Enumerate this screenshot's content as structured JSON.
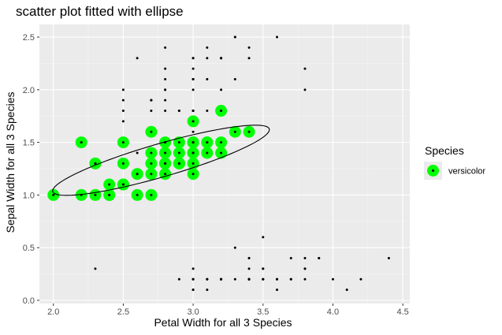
{
  "chart_data": {
    "type": "scatter",
    "title": "scatter plot fitted with ellipse",
    "xlabel": "Petal Width for all 3 Species",
    "ylabel": "Sepal Width for all 3 Species",
    "xlim": [
      1.9,
      4.55
    ],
    "ylim": [
      -0.03,
      2.62
    ],
    "x_ticks": [
      "2.0",
      "2.5",
      "3.0",
      "3.5",
      "4.0",
      "4.5"
    ],
    "y_ticks": [
      "0.0",
      "0.5",
      "1.0",
      "1.5",
      "2.0",
      "2.5"
    ],
    "grid": true,
    "legend": {
      "title": "Species",
      "position": "right",
      "entries": [
        "versicolor"
      ]
    },
    "colors": {
      "panel": "#ebebeb",
      "grid_major": "#ffffff",
      "grid_minor": "#f5f5f5",
      "highlight": "#00ff00",
      "point": "#000000"
    },
    "all_points": [
      [
        3.5,
        0.2
      ],
      [
        3.0,
        0.2
      ],
      [
        3.2,
        0.2
      ],
      [
        3.1,
        0.2
      ],
      [
        3.6,
        0.2
      ],
      [
        3.9,
        0.4
      ],
      [
        3.4,
        0.3
      ],
      [
        3.4,
        0.2
      ],
      [
        2.9,
        0.2
      ],
      [
        3.1,
        0.1
      ],
      [
        3.7,
        0.2
      ],
      [
        3.4,
        0.2
      ],
      [
        3.0,
        0.1
      ],
      [
        3.0,
        0.1
      ],
      [
        4.0,
        0.2
      ],
      [
        4.4,
        0.4
      ],
      [
        3.9,
        0.4
      ],
      [
        3.5,
        0.3
      ],
      [
        3.8,
        0.3
      ],
      [
        3.8,
        0.3
      ],
      [
        3.4,
        0.2
      ],
      [
        3.7,
        0.4
      ],
      [
        3.6,
        0.2
      ],
      [
        3.3,
        0.5
      ],
      [
        3.4,
        0.2
      ],
      [
        3.0,
        0.2
      ],
      [
        3.4,
        0.4
      ],
      [
        3.5,
        0.2
      ],
      [
        3.4,
        0.2
      ],
      [
        3.2,
        0.2
      ],
      [
        3.1,
        0.2
      ],
      [
        3.4,
        0.4
      ],
      [
        4.1,
        0.1
      ],
      [
        4.2,
        0.2
      ],
      [
        3.1,
        0.2
      ],
      [
        3.2,
        0.2
      ],
      [
        3.5,
        0.2
      ],
      [
        3.6,
        0.1
      ],
      [
        3.0,
        0.2
      ],
      [
        3.4,
        0.2
      ],
      [
        3.5,
        0.3
      ],
      [
        2.3,
        0.3
      ],
      [
        3.2,
        0.2
      ],
      [
        3.5,
        0.6
      ],
      [
        3.8,
        0.4
      ],
      [
        3.0,
        0.3
      ],
      [
        3.8,
        0.2
      ],
      [
        3.2,
        0.2
      ],
      [
        3.7,
        0.2
      ],
      [
        3.3,
        0.2
      ],
      [
        3.2,
        1.4
      ],
      [
        3.2,
        1.5
      ],
      [
        3.1,
        1.5
      ],
      [
        2.3,
        1.3
      ],
      [
        2.8,
        1.5
      ],
      [
        2.8,
        1.3
      ],
      [
        3.3,
        1.6
      ],
      [
        2.4,
        1.0
      ],
      [
        2.9,
        1.3
      ],
      [
        2.7,
        1.4
      ],
      [
        2.0,
        1.0
      ],
      [
        3.0,
        1.5
      ],
      [
        2.2,
        1.0
      ],
      [
        2.9,
        1.4
      ],
      [
        2.9,
        1.3
      ],
      [
        3.1,
        1.4
      ],
      [
        3.0,
        1.5
      ],
      [
        2.7,
        1.0
      ],
      [
        2.2,
        1.5
      ],
      [
        2.5,
        1.1
      ],
      [
        3.2,
        1.8
      ],
      [
        2.8,
        1.3
      ],
      [
        2.5,
        1.5
      ],
      [
        2.8,
        1.2
      ],
      [
        2.9,
        1.3
      ],
      [
        3.0,
        1.4
      ],
      [
        2.8,
        1.4
      ],
      [
        3.0,
        1.7
      ],
      [
        2.9,
        1.5
      ],
      [
        2.6,
        1.0
      ],
      [
        2.4,
        1.1
      ],
      [
        2.4,
        1.0
      ],
      [
        2.7,
        1.2
      ],
      [
        2.7,
        1.6
      ],
      [
        3.0,
        1.5
      ],
      [
        3.4,
        1.6
      ],
      [
        3.1,
        1.5
      ],
      [
        2.3,
        1.3
      ],
      [
        3.0,
        1.3
      ],
      [
        2.5,
        1.3
      ],
      [
        2.6,
        1.2
      ],
      [
        3.0,
        1.4
      ],
      [
        2.6,
        1.2
      ],
      [
        2.3,
        1.0
      ],
      [
        2.7,
        1.3
      ],
      [
        3.0,
        1.2
      ],
      [
        2.9,
        1.3
      ],
      [
        2.9,
        1.3
      ],
      [
        2.5,
        1.1
      ],
      [
        2.8,
        1.3
      ],
      [
        3.3,
        2.5
      ],
      [
        2.7,
        1.9
      ],
      [
        3.0,
        2.1
      ],
      [
        2.9,
        1.8
      ],
      [
        3.0,
        2.2
      ],
      [
        3.0,
        2.1
      ],
      [
        2.5,
        1.7
      ],
      [
        2.9,
        1.8
      ],
      [
        2.5,
        1.8
      ],
      [
        3.6,
        2.5
      ],
      [
        3.2,
        2.0
      ],
      [
        2.7,
        1.9
      ],
      [
        3.0,
        2.1
      ],
      [
        2.5,
        2.0
      ],
      [
        2.8,
        2.4
      ],
      [
        3.2,
        2.3
      ],
      [
        3.0,
        1.8
      ],
      [
        3.8,
        2.2
      ],
      [
        2.6,
        2.3
      ],
      [
        2.2,
        1.5
      ],
      [
        3.2,
        2.3
      ],
      [
        2.8,
        2.0
      ],
      [
        2.8,
        2.0
      ],
      [
        2.7,
        1.8
      ],
      [
        3.3,
        2.1
      ],
      [
        3.2,
        1.8
      ],
      [
        2.8,
        1.8
      ],
      [
        3.0,
        1.8
      ],
      [
        2.8,
        2.1
      ],
      [
        3.0,
        1.6
      ],
      [
        2.8,
        1.9
      ],
      [
        3.8,
        2.0
      ],
      [
        2.8,
        2.2
      ],
      [
        2.8,
        1.5
      ],
      [
        2.6,
        1.4
      ],
      [
        3.0,
        2.3
      ],
      [
        3.4,
        2.4
      ],
      [
        3.1,
        1.8
      ],
      [
        3.0,
        1.8
      ],
      [
        3.1,
        2.1
      ],
      [
        3.1,
        2.4
      ],
      [
        3.1,
        2.3
      ],
      [
        2.7,
        1.9
      ],
      [
        3.2,
        2.3
      ],
      [
        3.3,
        2.5
      ],
      [
        3.0,
        2.3
      ],
      [
        2.5,
        1.9
      ],
      [
        3.0,
        2.0
      ],
      [
        3.4,
        2.3
      ],
      [
        3.0,
        1.8
      ]
    ],
    "series": [
      {
        "name": "versicolor",
        "points": [
          [
            3.2,
            1.4
          ],
          [
            3.2,
            1.5
          ],
          [
            3.1,
            1.5
          ],
          [
            2.3,
            1.3
          ],
          [
            2.8,
            1.5
          ],
          [
            2.8,
            1.3
          ],
          [
            3.3,
            1.6
          ],
          [
            2.4,
            1.0
          ],
          [
            2.9,
            1.3
          ],
          [
            2.7,
            1.4
          ],
          [
            2.0,
            1.0
          ],
          [
            3.0,
            1.5
          ],
          [
            2.2,
            1.0
          ],
          [
            2.9,
            1.4
          ],
          [
            2.9,
            1.3
          ],
          [
            3.1,
            1.4
          ],
          [
            3.0,
            1.5
          ],
          [
            2.7,
            1.0
          ],
          [
            2.2,
            1.5
          ],
          [
            2.5,
            1.1
          ],
          [
            3.2,
            1.8
          ],
          [
            2.8,
            1.3
          ],
          [
            2.5,
            1.5
          ],
          [
            2.8,
            1.2
          ],
          [
            2.9,
            1.3
          ],
          [
            3.0,
            1.4
          ],
          [
            2.8,
            1.4
          ],
          [
            3.0,
            1.7
          ],
          [
            2.9,
            1.5
          ],
          [
            2.6,
            1.0
          ],
          [
            2.4,
            1.1
          ],
          [
            2.4,
            1.0
          ],
          [
            2.7,
            1.2
          ],
          [
            2.7,
            1.6
          ],
          [
            3.0,
            1.5
          ],
          [
            3.4,
            1.6
          ],
          [
            3.1,
            1.5
          ],
          [
            2.3,
            1.3
          ],
          [
            3.0,
            1.3
          ],
          [
            2.5,
            1.3
          ],
          [
            2.6,
            1.2
          ],
          [
            3.0,
            1.4
          ],
          [
            2.6,
            1.2
          ],
          [
            2.3,
            1.0
          ],
          [
            2.7,
            1.3
          ],
          [
            3.0,
            1.2
          ],
          [
            2.9,
            1.3
          ],
          [
            2.9,
            1.3
          ],
          [
            2.5,
            1.1
          ],
          [
            2.8,
            1.3
          ]
        ]
      }
    ],
    "ellipse": {
      "center": [
        2.77,
        1.33
      ],
      "semi_axis_major": 0.83,
      "semi_axis_minor": 0.153,
      "angle_deg": 21.3
    }
  }
}
